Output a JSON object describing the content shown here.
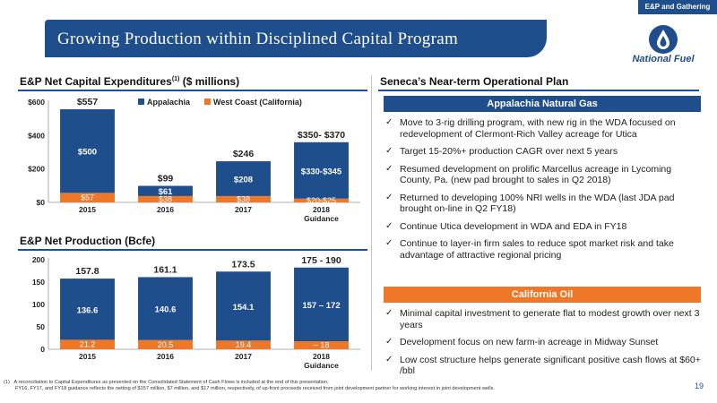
{
  "section_tag": "E&P and Gathering",
  "title": "Growing Production within Disciplined Capital Program",
  "logo_text": "National Fuel",
  "capex": {
    "heading": "E&P Net Capital Expenditures",
    "heading_sup": "(1)",
    "heading_units": "($ millions)"
  },
  "production": {
    "heading": "E&P Net Production (Bcfe)"
  },
  "chart_data": [
    {
      "type": "bar",
      "stacked": true,
      "categories": [
        "2015",
        "2016",
        "2017",
        "2018 Guidance"
      ],
      "category_lines": [
        [
          "2015"
        ],
        [
          "2016"
        ],
        [
          "2017"
        ],
        [
          "2018",
          "Guidance"
        ]
      ],
      "yticks": [
        "$0",
        "$200",
        "$400",
        "$600"
      ],
      "ylim": [
        0,
        600
      ],
      "legend": "top",
      "series": [
        {
          "name": "Appalachia",
          "color": "#1f4e8c",
          "values": [
            500,
            61,
            208,
            337.5
          ],
          "labels": [
            "$500",
            "$61",
            "$208",
            "$330-$345"
          ]
        },
        {
          "name": "West Coast (California)",
          "color": "#ee7728",
          "values": [
            57,
            38,
            38,
            22.5
          ],
          "labels": [
            "$57",
            "$38",
            "$38",
            "$20-$25"
          ]
        }
      ],
      "totals": [
        "$557",
        "$99",
        "$246",
        "$350- $370"
      ],
      "total_values": [
        557,
        99,
        246,
        360
      ]
    },
    {
      "type": "bar",
      "stacked": true,
      "categories": [
        "2015",
        "2016",
        "2017",
        "2018 Guidance"
      ],
      "category_lines": [
        [
          "2015"
        ],
        [
          "2016"
        ],
        [
          "2017"
        ],
        [
          "2018",
          "Guidance"
        ]
      ],
      "yticks": [
        "0",
        "50",
        "100",
        "150",
        "200"
      ],
      "ylim": [
        0,
        200
      ],
      "series": [
        {
          "name": "Appalachia",
          "color": "#1f4e8c",
          "values": [
            136.6,
            140.6,
            154.1,
            164.5
          ],
          "labels": [
            "136.6",
            "140.6",
            "154.1",
            "157 – 172"
          ]
        },
        {
          "name": "West Coast (California)",
          "color": "#ee7728",
          "values": [
            21.2,
            20.5,
            19.4,
            18
          ],
          "labels": [
            "21.2",
            "20.5",
            "19.4",
            "~ 18"
          ]
        }
      ],
      "totals": [
        "157.8",
        "161.1",
        "173.5",
        "175 - 190"
      ],
      "total_values": [
        157.8,
        161.1,
        173.5,
        182.5
      ]
    }
  ],
  "plan": {
    "heading": "Seneca’s Near-term Operational Plan",
    "appalachia_head": "Appalachia Natural Gas",
    "appalachia_items": [
      "Move to 3-rig drilling program, with new rig in the WDA focused on redevelopment of Clermont-Rich Valley acreage for Utica",
      "Target 15-20%+ production CAGR over next 5 years",
      "Resumed development on prolific Marcellus acreage in Lycoming County, Pa. (new pad brought to sales in Q2 2018)",
      "Returned to developing 100% NRI wells in the WDA (last JDA pad brought on-line in Q2 FY18)",
      "Continue Utica development in WDA and EDA in FY18",
      "Continue to layer-in firm sales to reduce spot market risk and take advantage of attractive regional pricing"
    ],
    "california_head": "California Oil",
    "california_items": [
      "Minimal capital investment to generate flat to modest growth over next 3 years",
      "Development focus on new farm-in acreage in Midway Sunset",
      "Low cost structure helps generate significant positive cash flows at $60+ /bbl"
    ]
  },
  "footnote": {
    "marker": "(1)",
    "line1": "A reconciliation to Capital Expenditures as presented on the Consolidated Statement of Cash Flows is included at the end of this presentation.",
    "line2": "FY16, FY17, and FY18 guidance reflects the netting of $157 million, $7 million, and $17 million, respectively, of up-front proceeds received from joint development partner for working interest in joint development wells."
  },
  "page_number": "19"
}
